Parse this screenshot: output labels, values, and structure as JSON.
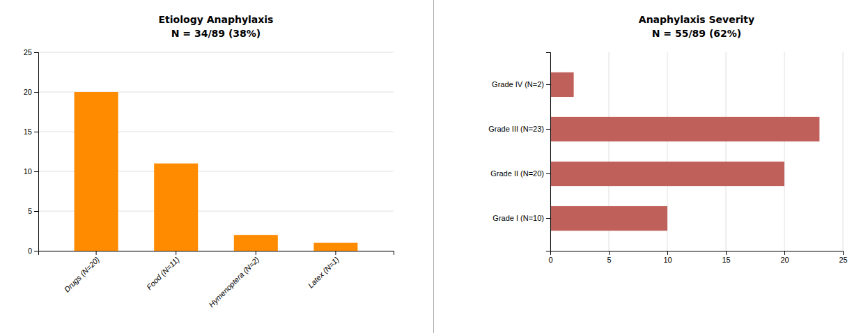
{
  "chart_data": [
    {
      "type": "bar",
      "title": "Etiology Anaphylaxis",
      "subtitle": "N = 34/89 (38%)",
      "categories": [
        "Drugs (N=20)",
        "Food (N=11)",
        "Hymenoptera (N=2)",
        "Latex (N=1)"
      ],
      "values": [
        20,
        11,
        2,
        1
      ],
      "color": "#FF8C00",
      "ylim": [
        0,
        25
      ],
      "yticks": [
        0,
        5,
        10,
        15,
        20,
        25
      ],
      "grid": true
    },
    {
      "type": "bar",
      "orientation": "horizontal",
      "title": "Anaphylaxis Severity",
      "subtitle": "N = 55/89 (62%)",
      "categories": [
        "Grade I (N=10)",
        "Grade II (N=20)",
        "Grade III (N=23)",
        "Grade IV (N=2)"
      ],
      "values": [
        10,
        20,
        23,
        2
      ],
      "color": "#C0605A",
      "xlim": [
        0,
        25
      ],
      "xticks": [
        0,
        5,
        10,
        15,
        20,
        25
      ],
      "grid": true
    }
  ]
}
